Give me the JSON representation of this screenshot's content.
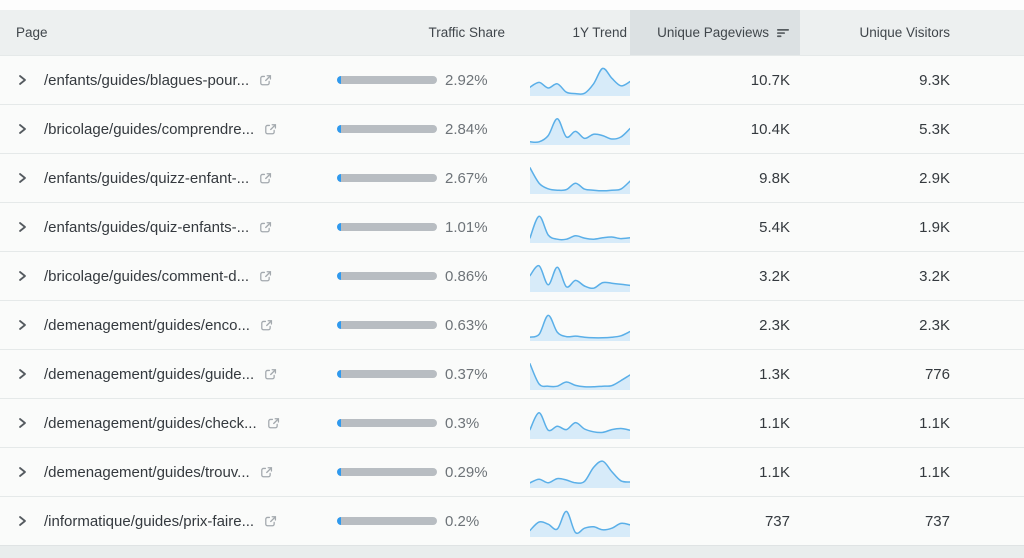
{
  "header": {
    "columns": {
      "page": "Page",
      "traffic_share": "Traffic Share",
      "trend": "1Y Trend",
      "unique_pageviews": "Unique Pageviews",
      "unique_visitors": "Unique Visitors"
    },
    "sorted_column": "unique_pageviews",
    "sort_direction": "descending"
  },
  "colors": {
    "accent_blue": "#2e9af0",
    "bar_gray": "#b8bdc2",
    "spark_line": "#5aafe8",
    "spark_fill": "#d7ebf9",
    "header_bg": "#edf0f0",
    "sorted_header_bg": "#dce1e3",
    "row_bg": "#fafbfa",
    "border": "#e5e9e9"
  },
  "table": {
    "rows": [
      {
        "page": "/enfants/guides/blagues-pour...",
        "traffic_share": "2.92%",
        "traffic_share_pct": 2.92,
        "trend": [
          0.28,
          0.45,
          0.25,
          0.4,
          0.1,
          0.05,
          0.06,
          0.4,
          0.95,
          0.6,
          0.33,
          0.48
        ],
        "unique_pageviews": "10.7K",
        "unique_visitors": "9.3K"
      },
      {
        "page": "/bricolage/guides/comprendre...",
        "traffic_share": "2.84%",
        "traffic_share_pct": 2.84,
        "trend": [
          0.08,
          0.08,
          0.3,
          0.9,
          0.25,
          0.45,
          0.2,
          0.35,
          0.3,
          0.18,
          0.25,
          0.55
        ],
        "unique_pageviews": "10.4K",
        "unique_visitors": "5.3K"
      },
      {
        "page": "/enfants/guides/quizz-enfant-...",
        "traffic_share": "2.67%",
        "traffic_share_pct": 2.67,
        "trend": [
          0.9,
          0.35,
          0.15,
          0.1,
          0.12,
          0.35,
          0.14,
          0.1,
          0.08,
          0.1,
          0.14,
          0.42
        ],
        "unique_pageviews": "9.8K",
        "unique_visitors": "2.9K"
      },
      {
        "page": "/enfants/guides/quiz-enfants-...",
        "traffic_share": "1.01%",
        "traffic_share_pct": 1.01,
        "trend": [
          0.15,
          0.92,
          0.25,
          0.1,
          0.1,
          0.22,
          0.14,
          0.1,
          0.15,
          0.18,
          0.12,
          0.15
        ],
        "unique_pageviews": "5.4K",
        "unique_visitors": "1.9K"
      },
      {
        "page": "/bricolage/guides/comment-d...",
        "traffic_share": "0.86%",
        "traffic_share_pct": 0.86,
        "trend": [
          0.55,
          0.9,
          0.22,
          0.85,
          0.15,
          0.38,
          0.18,
          0.1,
          0.3,
          0.28,
          0.24,
          0.2
        ],
        "unique_pageviews": "3.2K",
        "unique_visitors": "3.2K"
      },
      {
        "page": "/demenagement/guides/enco...",
        "traffic_share": "0.63%",
        "traffic_share_pct": 0.63,
        "trend": [
          0.1,
          0.2,
          0.88,
          0.28,
          0.12,
          0.14,
          0.1,
          0.08,
          0.08,
          0.1,
          0.15,
          0.3
        ],
        "unique_pageviews": "2.3K",
        "unique_visitors": "2.3K"
      },
      {
        "page": "/demenagement/guides/guide...",
        "traffic_share": "0.37%",
        "traffic_share_pct": 0.37,
        "trend": [
          0.9,
          0.18,
          0.1,
          0.1,
          0.25,
          0.13,
          0.08,
          0.08,
          0.1,
          0.12,
          0.3,
          0.5
        ],
        "unique_pageviews": "1.3K",
        "unique_visitors": "776"
      },
      {
        "page": "/demenagement/guides/check...",
        "traffic_share": "0.3%",
        "traffic_share_pct": 0.3,
        "trend": [
          0.3,
          0.9,
          0.28,
          0.42,
          0.3,
          0.55,
          0.32,
          0.22,
          0.2,
          0.3,
          0.34,
          0.28
        ],
        "unique_pageviews": "1.1K",
        "unique_visitors": "1.1K"
      },
      {
        "page": "/demenagement/guides/trouv...",
        "traffic_share": "0.29%",
        "traffic_share_pct": 0.29,
        "trend": [
          0.15,
          0.28,
          0.15,
          0.3,
          0.25,
          0.15,
          0.2,
          0.7,
          0.92,
          0.55,
          0.22,
          0.18
        ],
        "unique_pageviews": "1.1K",
        "unique_visitors": "1.1K"
      },
      {
        "page": "/informatique/guides/prix-faire...",
        "traffic_share": "0.2%",
        "traffic_share_pct": 0.2,
        "trend": [
          0.2,
          0.5,
          0.42,
          0.25,
          0.88,
          0.12,
          0.28,
          0.33,
          0.22,
          0.28,
          0.45,
          0.4
        ],
        "unique_pageviews": "737",
        "unique_visitors": "737"
      }
    ]
  }
}
